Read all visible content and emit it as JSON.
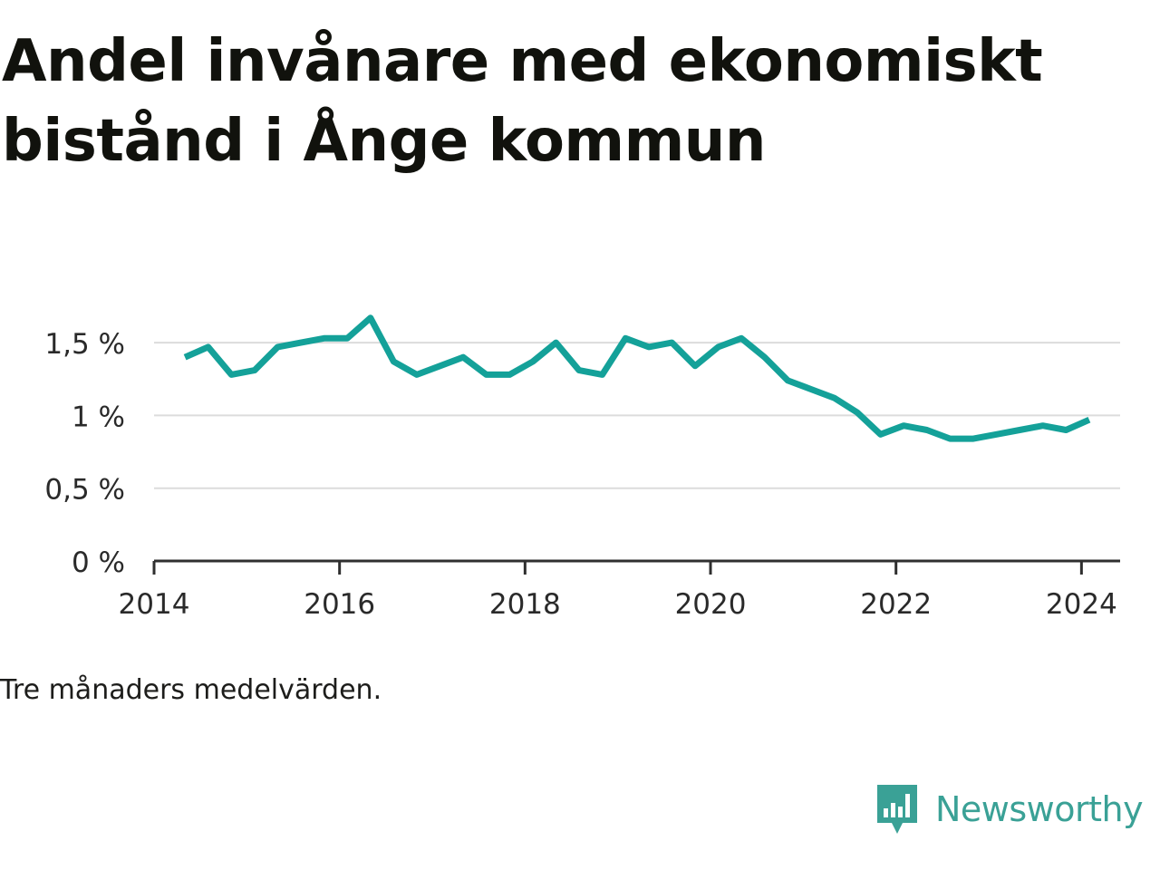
{
  "title": "Andel invånare med ekonomiskt bistånd i Ånge kommun",
  "note": "Tre månaders medelvärden.",
  "brand": {
    "name": "Newsworthy",
    "icon": "newsworthy-logo-icon",
    "color": "#3aa196"
  },
  "colors": {
    "line": "#14a199",
    "grid": "#dcdcdc",
    "axis": "#2f2f2f",
    "text": "#11120d"
  },
  "chart_data": {
    "type": "line",
    "title": "Andel invånare med ekonomiskt bistånd i Ånge kommun",
    "xlabel": "",
    "ylabel": "",
    "xlim": [
      "2014-01",
      "2024-06"
    ],
    "ylim": [
      0,
      1.7
    ],
    "x_ticks": [
      "2014",
      "2016",
      "2018",
      "2020",
      "2022",
      "2024"
    ],
    "y_ticks": [
      {
        "value": 0,
        "label": "0 %"
      },
      {
        "value": 0.5,
        "label": "0,5 %"
      },
      {
        "value": 1,
        "label": "1 %"
      },
      {
        "value": 1.5,
        "label": "1,5 %"
      }
    ],
    "grid": true,
    "series": [
      {
        "x": [
          "2014-05",
          "2014-08",
          "2014-11",
          "2015-02",
          "2015-05",
          "2015-08",
          "2015-11",
          "2016-02",
          "2016-05",
          "2016-08",
          "2016-11",
          "2017-02",
          "2017-05",
          "2017-08",
          "2017-11",
          "2018-02",
          "2018-05",
          "2018-08",
          "2018-11",
          "2019-02",
          "2019-05",
          "2019-08",
          "2019-11",
          "2020-02",
          "2020-05",
          "2020-08",
          "2020-11",
          "2021-02",
          "2021-05",
          "2021-08",
          "2021-11",
          "2022-02",
          "2022-05",
          "2022-08",
          "2022-11",
          "2023-02",
          "2023-05",
          "2023-08",
          "2023-11",
          "2024-02"
        ],
        "values": [
          1.4,
          1.47,
          1.28,
          1.31,
          1.47,
          1.5,
          1.53,
          1.53,
          1.67,
          1.37,
          1.28,
          1.34,
          1.4,
          1.28,
          1.28,
          1.37,
          1.5,
          1.31,
          1.28,
          1.53,
          1.47,
          1.5,
          1.34,
          1.47,
          1.53,
          1.4,
          1.24,
          1.18,
          1.12,
          1.02,
          0.87,
          0.93,
          0.9,
          0.84,
          0.84,
          0.87,
          0.9,
          0.93,
          0.9,
          0.97
        ]
      }
    ]
  }
}
